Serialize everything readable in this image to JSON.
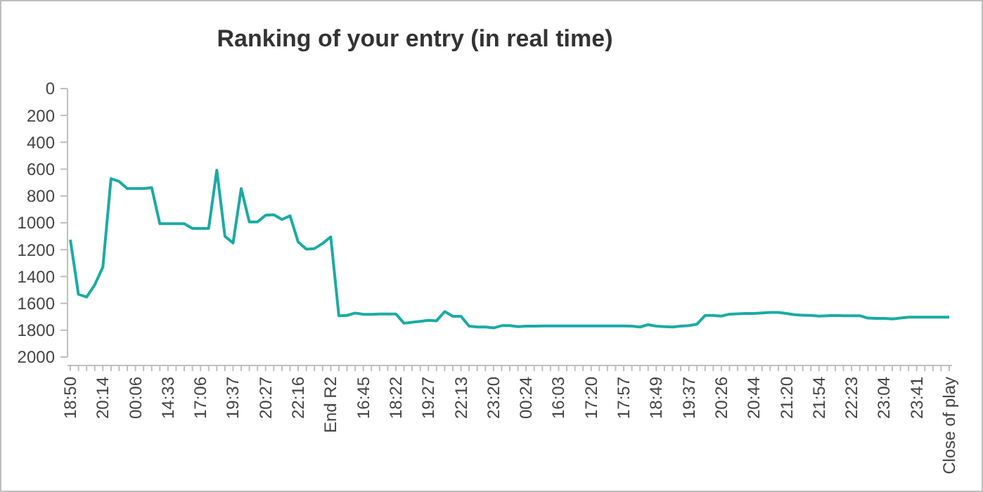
{
  "chart_data": {
    "type": "line",
    "title": "Ranking of your entry (in real time)",
    "categories": [
      "18:50",
      null,
      null,
      null,
      "20:14",
      null,
      null,
      null,
      "00:06",
      null,
      null,
      null,
      "14:33",
      null,
      null,
      null,
      "17:06",
      null,
      null,
      null,
      "19:37",
      null,
      null,
      null,
      "20:27",
      null,
      null,
      null,
      "22:16",
      null,
      null,
      null,
      "End R2",
      null,
      null,
      null,
      "16:45",
      null,
      null,
      null,
      "18:22",
      null,
      null,
      null,
      "19:27",
      null,
      null,
      null,
      "22:13",
      null,
      null,
      null,
      "23:20",
      null,
      null,
      null,
      "00:24",
      null,
      null,
      null,
      "16:03",
      null,
      null,
      null,
      "17:20",
      null,
      null,
      null,
      "17:57",
      null,
      null,
      null,
      "18:49",
      null,
      null,
      null,
      "19:37",
      null,
      null,
      null,
      "20:26",
      null,
      null,
      null,
      "20:44",
      null,
      null,
      null,
      "21:20",
      null,
      null,
      null,
      "21:54",
      null,
      null,
      null,
      "22:23",
      null,
      null,
      null,
      "23:04",
      null,
      null,
      null,
      "23:41",
      null,
      null,
      null,
      "Close of play"
    ],
    "series": [
      {
        "color": "#1aaba3",
        "values": [
          1126,
          1532,
          1553,
          1462,
          1329,
          671,
          692,
          745,
          745,
          745,
          738,
          1007,
          1007,
          1007,
          1007,
          1042,
          1042,
          1042,
          608,
          1101,
          1150,
          745,
          993,
          993,
          944,
          940,
          975,
          948,
          1143,
          1196,
          1192,
          1154,
          1105,
          1693,
          1690,
          1672,
          1682,
          1682,
          1679,
          1679,
          1679,
          1748,
          1741,
          1734,
          1727,
          1730,
          1661,
          1696,
          1696,
          1770,
          1776,
          1776,
          1783,
          1766,
          1766,
          1773,
          1770,
          1770,
          1768,
          1768,
          1768,
          1768,
          1768,
          1768,
          1768,
          1768,
          1768,
          1768,
          1768,
          1770,
          1776,
          1759,
          1770,
          1773,
          1776,
          1770,
          1766,
          1755,
          1690,
          1690,
          1695,
          1680,
          1678,
          1675,
          1675,
          1672,
          1668,
          1668,
          1675,
          1685,
          1688,
          1690,
          1695,
          1692,
          1690,
          1692,
          1692,
          1692,
          1710,
          1712,
          1712,
          1716,
          1710,
          1703,
          1703,
          1703,
          1703,
          1703,
          1703
        ]
      }
    ],
    "ylim": [
      2000,
      0
    ],
    "yticks": [
      0,
      200,
      400,
      600,
      800,
      1000,
      1200,
      1400,
      1600,
      1800,
      2000
    ],
    "grid": false,
    "marker": "none",
    "line_style": "solid"
  }
}
